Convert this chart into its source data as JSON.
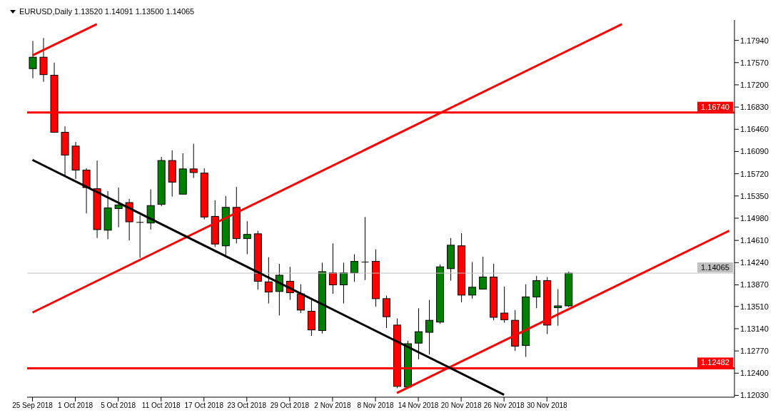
{
  "chart_data": {
    "type": "candlestick",
    "title": "EURUSD,Daily 1.13520 1.14091 1.13500 1.14065",
    "categories": [
      "25 Sep 2018",
      null,
      null,
      null,
      "1 Oct 2018",
      null,
      null,
      null,
      "5 Oct 2018",
      null,
      null,
      null,
      "11 Oct 2018",
      null,
      null,
      null,
      "17 Oct 2018",
      null,
      null,
      null,
      "23 Oct 2018",
      null,
      null,
      null,
      "29 Oct 2018",
      null,
      null,
      null,
      "2 Nov 2018",
      null,
      null,
      null,
      "8 Nov 2018",
      null,
      null,
      null,
      "14 Nov 2018",
      null,
      null,
      null,
      "20 Nov 2018",
      null,
      null,
      null,
      "26 Nov 2018",
      null,
      null,
      null,
      "30 Nov 2018",
      null,
      null,
      null,
      null,
      null,
      null,
      null,
      null,
      null,
      null,
      null,
      null,
      null,
      null,
      null,
      null,
      null
    ],
    "ohlc": [
      [
        1.1747,
        1.1793,
        1.1731,
        1.1766
      ],
      [
        1.1766,
        1.1798,
        1.1725,
        1.1737
      ],
      [
        1.1736,
        1.1757,
        1.164,
        1.1641
      ],
      [
        1.1641,
        1.1651,
        1.1569,
        1.1603
      ],
      [
        1.1618,
        1.1625,
        1.1563,
        1.1578
      ],
      [
        1.1578,
        1.1581,
        1.1506,
        1.1549
      ],
      [
        1.1547,
        1.1594,
        1.1465,
        1.1479
      ],
      [
        1.1478,
        1.1543,
        1.1463,
        1.1515
      ],
      [
        1.1514,
        1.1549,
        1.1483,
        1.152
      ],
      [
        1.1524,
        1.153,
        1.1461,
        1.1492
      ],
      [
        1.1491,
        1.1503,
        1.1432,
        1.1491
      ],
      [
        1.149,
        1.1546,
        1.1479,
        1.1519
      ],
      [
        1.1521,
        1.16,
        1.1518,
        1.1594
      ],
      [
        1.1594,
        1.1611,
        1.1534,
        1.1558
      ],
      [
        1.1538,
        1.1606,
        1.1538,
        1.158
      ],
      [
        1.158,
        1.1622,
        1.1565,
        1.1574
      ],
      [
        1.1573,
        1.1581,
        1.1496,
        1.15
      ],
      [
        1.1501,
        1.1528,
        1.145,
        1.1455
      ],
      [
        1.1452,
        1.1535,
        1.1436,
        1.1516
      ],
      [
        1.1516,
        1.155,
        1.1456,
        1.1464
      ],
      [
        1.1464,
        1.1493,
        1.1438,
        1.1471
      ],
      [
        1.1472,
        1.1477,
        1.1379,
        1.1393
      ],
      [
        1.1392,
        1.1433,
        1.1356,
        1.1375
      ],
      [
        1.1376,
        1.1422,
        1.1336,
        1.1403
      ],
      [
        1.1393,
        1.1417,
        1.1362,
        1.1374
      ],
      [
        1.1372,
        1.1388,
        1.134,
        1.1345
      ],
      [
        1.1343,
        1.1362,
        1.1302,
        1.1312
      ],
      [
        1.1311,
        1.1424,
        1.1306,
        1.1409
      ],
      [
        1.1407,
        1.1456,
        1.1372,
        1.1387
      ],
      [
        1.1387,
        1.1424,
        1.1356,
        1.1407
      ],
      [
        1.1407,
        1.1438,
        1.1392,
        1.1426
      ],
      [
        1.1425,
        1.15,
        1.1395,
        1.1425
      ],
      [
        1.1426,
        1.1446,
        1.1351,
        1.1364
      ],
      [
        1.1364,
        1.1369,
        1.1315,
        1.1334
      ],
      [
        1.132,
        1.1331,
        1.1215,
        1.1218
      ],
      [
        1.1217,
        1.1294,
        1.1217,
        1.1289
      ],
      [
        1.129,
        1.1348,
        1.1263,
        1.1309
      ],
      [
        1.1308,
        1.1362,
        1.1271,
        1.1328
      ],
      [
        1.1325,
        1.1421,
        1.1322,
        1.1417
      ],
      [
        1.1414,
        1.1465,
        1.1394,
        1.1453
      ],
      [
        1.1452,
        1.1473,
        1.1358,
        1.137
      ],
      [
        1.137,
        1.1425,
        1.1364,
        1.1383
      ],
      [
        1.138,
        1.1434,
        1.138,
        1.14
      ],
      [
        1.14,
        1.1422,
        1.1328,
        1.1333
      ],
      [
        1.134,
        1.1384,
        1.1324,
        1.1329
      ],
      [
        1.1328,
        1.1345,
        1.1277,
        1.1285
      ],
      [
        1.1286,
        1.1388,
        1.1267,
        1.1367
      ],
      [
        1.1367,
        1.1402,
        1.1348,
        1.1394
      ],
      [
        1.1394,
        1.14,
        1.1305,
        1.132
      ],
      [
        1.1349,
        1.138,
        1.1319,
        1.1352
      ],
      [
        1.1352,
        1.14091,
        1.135,
        1.14065
      ],
      null,
      null,
      null,
      null,
      null,
      null,
      null,
      null,
      null,
      null,
      null,
      null,
      null,
      null,
      null
    ],
    "colors": [
      "#008000",
      "#ff0000",
      "#ff0000",
      "#ff0000",
      "#ff0000",
      "#ff0000",
      "#ff0000",
      "#008000",
      "#008000",
      "#ff0000",
      "#000000",
      "#008000",
      "#008000",
      "#ff0000",
      "#008000",
      "#ff0000",
      "#ff0000",
      "#ff0000",
      "#008000",
      "#ff0000",
      "#008000",
      "#ff0000",
      "#ff0000",
      "#008000",
      "#ff0000",
      "#ff0000",
      "#ff0000",
      "#008000",
      "#ff0000",
      "#008000",
      "#008000",
      "#000000",
      "#ff0000",
      "#ff0000",
      "#ff0000",
      "#008000",
      "#008000",
      "#008000",
      "#008000",
      "#008000",
      "#ff0000",
      "#008000",
      "#008000",
      "#ff0000",
      "#ff0000",
      "#ff0000",
      "#008000",
      "#008000",
      "#ff0000",
      "#008000",
      "#008000",
      null,
      null,
      null,
      null,
      null,
      null,
      null,
      null,
      null,
      null,
      null,
      null,
      null,
      null,
      null
    ],
    "series": [
      {
        "type": "line",
        "color": "#ff0000",
        "values": [
          1.1769,
          null,
          null,
          null,
          null,
          null,
          1.1821,
          null,
          null,
          null,
          null,
          null,
          null,
          null,
          null,
          null,
          null,
          null,
          null,
          null,
          null,
          null,
          null,
          null,
          null,
          null,
          null,
          null,
          null,
          null,
          null,
          null,
          null,
          null,
          null,
          null,
          null,
          null,
          null,
          null,
          null,
          null,
          null,
          null,
          null,
          null,
          null,
          null,
          null,
          null,
          null,
          null,
          null,
          null,
          null,
          null,
          null,
          null,
          null,
          null,
          null,
          null,
          null,
          null,
          null,
          null
        ]
      },
      {
        "type": "line",
        "color": "#ff0000",
        "values": [
          1.1341,
          null,
          null,
          null,
          null,
          null,
          null,
          null,
          null,
          null,
          null,
          null,
          null,
          null,
          null,
          null,
          null,
          null,
          null,
          null,
          null,
          null,
          null,
          null,
          null,
          null,
          null,
          null,
          null,
          null,
          null,
          null,
          null,
          null,
          null,
          null,
          null,
          null,
          null,
          null,
          null,
          null,
          null,
          null,
          null,
          null,
          null,
          null,
          null,
          null,
          null,
          null,
          null,
          null,
          null,
          1.1821,
          null,
          null,
          null,
          null,
          null,
          null,
          null,
          null,
          null,
          null
        ]
      },
      {
        "type": "line",
        "color": "#ff0000",
        "values": [
          null,
          null,
          null,
          null,
          null,
          null,
          null,
          null,
          null,
          null,
          null,
          null,
          null,
          null,
          null,
          null,
          null,
          null,
          null,
          null,
          null,
          null,
          null,
          null,
          null,
          null,
          null,
          null,
          null,
          null,
          null,
          null,
          null,
          null,
          1.1207,
          null,
          null,
          null,
          null,
          null,
          null,
          null,
          null,
          null,
          null,
          null,
          null,
          null,
          null,
          null,
          null,
          null,
          null,
          null,
          null,
          null,
          null,
          null,
          null,
          null,
          null,
          null,
          null,
          null,
          null,
          1.1477
        ]
      },
      {
        "type": "line",
        "color": "#000000",
        "values": [
          1.1595,
          null,
          null,
          null,
          null,
          null,
          null,
          null,
          null,
          null,
          null,
          null,
          null,
          null,
          null,
          null,
          null,
          null,
          null,
          null,
          null,
          null,
          null,
          null,
          null,
          null,
          null,
          null,
          null,
          null,
          null,
          null,
          null,
          null,
          null,
          null,
          null,
          null,
          null,
          null,
          null,
          null,
          null,
          null,
          1.1204,
          null,
          null,
          null,
          null,
          null,
          null,
          null,
          null,
          null,
          null,
          null,
          null,
          null,
          null,
          null,
          null,
          null,
          null,
          null,
          null,
          null
        ]
      }
    ],
    "ylim": [
      1.12,
      1.1828
    ],
    "yticks": [
      {
        "value": 1.1203,
        "label": "1.12030"
      },
      {
        "value": 1.124,
        "label": "1.12400"
      },
      {
        "value": 1.1277,
        "label": "1.12770"
      },
      {
        "value": 1.1314,
        "label": "1.13140"
      },
      {
        "value": 1.1351,
        "label": "1.13510"
      },
      {
        "value": 1.1387,
        "label": "1.13870"
      },
      {
        "value": 1.1424,
        "label": "1.14240"
      },
      {
        "value": 1.1461,
        "label": "1.14610"
      },
      {
        "value": 1.1498,
        "label": "1.14980"
      },
      {
        "value": 1.1535,
        "label": "1.15350"
      },
      {
        "value": 1.1572,
        "label": "1.15720"
      },
      {
        "value": 1.1609,
        "label": "1.16090"
      },
      {
        "value": 1.1646,
        "label": "1.16460"
      },
      {
        "value": 1.1683,
        "label": "1.16830"
      },
      {
        "value": 1.172,
        "label": "1.17200"
      },
      {
        "value": 1.1757,
        "label": "1.17570"
      },
      {
        "value": 1.1794,
        "label": "1.17940"
      }
    ],
    "ref_lines": [
      {
        "axis": "y",
        "value": 1.1674,
        "label": "1.16740",
        "color": "#ff0000"
      },
      {
        "axis": "y",
        "value": 1.12482,
        "label": "1.12482",
        "color": "#ff0000"
      },
      {
        "axis": "y",
        "value": 1.14065,
        "label": "1.14065",
        "color": "#c0c0c0"
      }
    ],
    "grid": false
  }
}
